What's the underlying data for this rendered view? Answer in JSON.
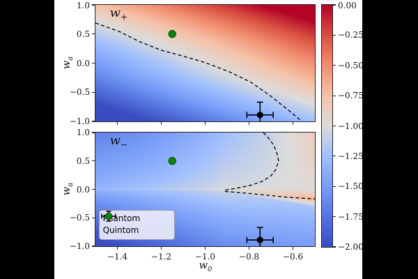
{
  "colors": {
    "page_background": "#000000",
    "figure_background": "#ffffff",
    "contour_line": "#0a0a0a",
    "spine": "#222222"
  },
  "chart_data": {
    "type": "heatmap",
    "colormap": "coolwarm",
    "grid": false,
    "x_axis": {
      "label_base": "w",
      "label_sub": "0",
      "range": [
        -1.5,
        -0.5
      ],
      "ticks": [
        -1.4,
        -1.2,
        -1.0,
        -0.8,
        -0.6
      ],
      "tick_labels": [
        "−1.4",
        "−1.2",
        "−1.0",
        "−0.8",
        "−0.6"
      ]
    },
    "y_axis": {
      "label_base": "w",
      "label_sub": "a",
      "range": [
        -1.0,
        1.0
      ],
      "ticks": [
        1.0,
        0.5,
        0.0,
        -0.5,
        -1.0
      ],
      "tick_labels": [
        "1.0",
        "0.5",
        "0.0",
        "−0.5",
        "−1.0"
      ]
    },
    "colorbar": {
      "range": [
        0,
        -2
      ],
      "ticks": [
        0,
        -0.25,
        -0.5,
        -0.75,
        -1.0,
        -1.25,
        -1.5,
        -1.75,
        -2.0
      ],
      "tick_labels": [
        "0.00",
        "−0.25",
        "−0.50",
        "−0.75",
        "−1.00",
        "−1.25",
        "−1.50",
        "−1.75",
        "−2.00"
      ]
    },
    "panels": [
      {
        "id": "w_plus",
        "label_base": "w",
        "label_sub": "+",
        "contour_level": -1,
        "contours": [
          [
            [
              -1.5,
              0.69
            ],
            [
              -1.39,
              0.54
            ],
            [
              -1.3,
              0.37
            ],
            [
              -1.2,
              0.22
            ],
            [
              -1.11,
              0.13
            ],
            [
              -1.0,
              0.01
            ],
            [
              -0.89,
              -0.15
            ],
            [
              -0.79,
              -0.33
            ],
            [
              -0.7,
              -0.57
            ],
            [
              -0.62,
              -0.81
            ],
            [
              -0.56,
              -1.0
            ]
          ]
        ]
      },
      {
        "id": "w_minus",
        "label_base": "w",
        "label_sub": "−",
        "contour_level": -1,
        "contours": [
          [
            [
              -0.735,
              1.0
            ],
            [
              -0.713,
              0.91
            ],
            [
              -0.69,
              0.79
            ],
            [
              -0.675,
              0.66
            ],
            [
              -0.665,
              0.5
            ],
            [
              -0.678,
              0.35
            ],
            [
              -0.7,
              0.24
            ],
            [
              -0.735,
              0.15
            ],
            [
              -0.786,
              0.08
            ],
            [
              -0.843,
              0.03
            ],
            [
              -0.91,
              -0.012
            ]
          ],
          [
            [
              -0.91,
              -0.035
            ],
            [
              -0.82,
              -0.064
            ],
            [
              -0.723,
              -0.1
            ],
            [
              -0.627,
              -0.137
            ],
            [
              -0.531,
              -0.162
            ],
            [
              -0.5,
              -0.168
            ]
          ]
        ]
      }
    ],
    "points": {
      "phantom": {
        "label": "Phantom",
        "w0": -0.75,
        "wa": -0.89,
        "w0_err": 0.06,
        "wa_err": 0.22,
        "color": "#000000"
      },
      "quintom": {
        "label": "Quintom",
        "w0": -1.15,
        "wa": 0.5,
        "color": "#0a830a"
      }
    },
    "legend": {
      "items": [
        {
          "label": "Phantom"
        },
        {
          "label": "Quintom"
        }
      ]
    }
  }
}
